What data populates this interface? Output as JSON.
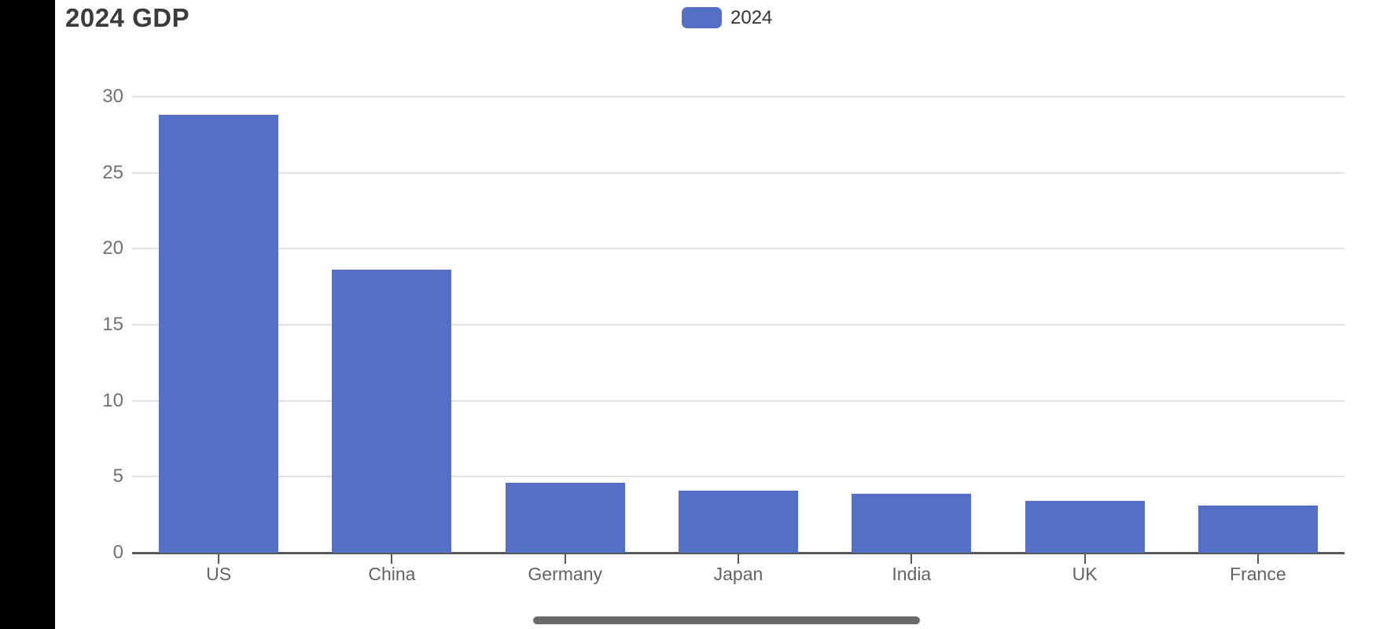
{
  "header": {
    "title": "2024 GDP"
  },
  "legend": {
    "items": [
      {
        "label": "2024",
        "color": "#5470c6"
      }
    ]
  },
  "chart_data": {
    "type": "bar",
    "title": "2024 GDP",
    "categories": [
      "US",
      "China",
      "Germany",
      "Japan",
      "India",
      "UK",
      "France"
    ],
    "series": [
      {
        "name": "2024",
        "color": "#5470c6",
        "values": [
          28.8,
          18.6,
          4.6,
          4.1,
          3.9,
          3.4,
          3.1
        ]
      }
    ],
    "xlabel": "",
    "ylabel": "",
    "ylim": [
      0,
      30
    ],
    "yticks": [
      0,
      5,
      10,
      15,
      20,
      25,
      30
    ],
    "grid": true,
    "legend_position": "top-center"
  },
  "colors": {
    "bar": "#5470c6",
    "grid_line": "#e1e1ec",
    "axis_line": "#56585e",
    "tick_mark": "#56585e",
    "ytick_label": "#6e7079",
    "xtick_label": "#606266",
    "title_text": "#3b3b3b",
    "legend_text": "#333333",
    "bezel": "#000000",
    "scroll_indicator": "#696969",
    "background": "#ffffff"
  }
}
